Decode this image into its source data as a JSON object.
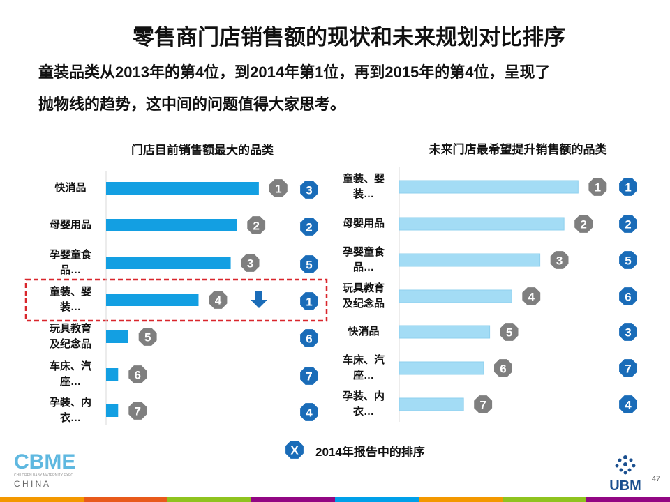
{
  "title": "零售商门店销售额的现状和未来规划对比排序",
  "subtitle_lines": [
    "童装品类从2013年的第4位，到2014年第1位，再到2015年的第4位，呈现了",
    "抛物线的趋势，这中间的问题值得大家思考。"
  ],
  "chart_data": [
    {
      "type": "bar",
      "orientation": "horizontal",
      "title": "门店目前销售额最大的品类",
      "categories": [
        "快消品",
        "母婴用品",
        "孕婴童食品…",
        "童装、婴装…",
        "玩具教育及纪念品",
        "车床、汽座…",
        "孕装、内衣…"
      ],
      "values": [
        76,
        65,
        62,
        46,
        11,
        6,
        6
      ],
      "xlim": [
        0,
        100
      ],
      "color": "#139fe2",
      "ranks": [
        1,
        2,
        3,
        4,
        5,
        6,
        7
      ],
      "report_ranks": [
        3,
        2,
        5,
        1,
        6,
        7,
        4
      ]
    },
    {
      "type": "bar",
      "orientation": "horizontal",
      "title": "未来门店最希望提升销售额的品类",
      "categories": [
        "童装、婴装…",
        "母婴用品",
        "孕婴童食品…",
        "玩具教育及纪念品",
        "快消品",
        "车床、汽座…",
        "孕装、内衣…"
      ],
      "values": [
        89,
        82,
        70,
        56,
        45,
        42,
        32
      ],
      "xlim": [
        0,
        100
      ],
      "color": "#a3dcf5",
      "ranks": [
        1,
        2,
        3,
        4,
        5,
        6,
        7
      ],
      "report_ranks": [
        1,
        2,
        5,
        6,
        3,
        7,
        4
      ]
    }
  ],
  "legend": {
    "marker": "X",
    "text": "2014年报告中的排序"
  },
  "logo": {
    "name": "CBME",
    "tagline": "CHILDREN BABY MATERNITY EXPO",
    "country": "C H I N A"
  },
  "brand": "UBM",
  "page_number": 47
}
